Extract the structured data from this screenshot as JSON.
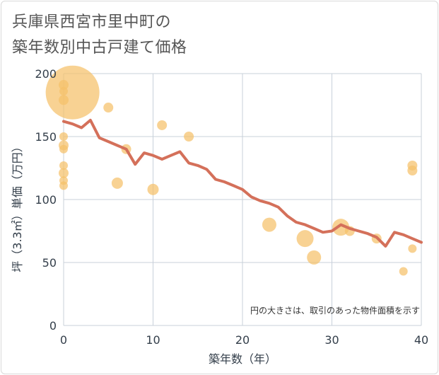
{
  "chart_data": {
    "type": "scatter",
    "title": [
      "兵庫県西宮市里中町の",
      "築年数別中古戸建て価格"
    ],
    "xlabel": "築年数（年）",
    "ylabel": "坪（3.3㎡）単価（万円）",
    "xlim": [
      0,
      40
    ],
    "ylim": [
      0,
      200
    ],
    "x_ticks": [
      0,
      10,
      20,
      30,
      40
    ],
    "y_ticks": [
      0,
      50,
      100,
      150,
      200
    ],
    "note": "円の大きさは、取引のあった物件面積を示す",
    "colors": {
      "bubble": "#f5c06a",
      "line": "#d4705a",
      "grid": "#c8d0da"
    },
    "bubbles": [
      {
        "x": 1,
        "y": 185,
        "size": 38
      },
      {
        "x": 0,
        "y": 191,
        "size": 7
      },
      {
        "x": 0,
        "y": 186,
        "size": 6
      },
      {
        "x": 0,
        "y": 179,
        "size": 7
      },
      {
        "x": 0,
        "y": 150,
        "size": 6
      },
      {
        "x": 0,
        "y": 143,
        "size": 7
      },
      {
        "x": 0,
        "y": 140,
        "size": 6
      },
      {
        "x": 0,
        "y": 127,
        "size": 6
      },
      {
        "x": 0,
        "y": 121,
        "size": 7
      },
      {
        "x": 0,
        "y": 115,
        "size": 6
      },
      {
        "x": 0,
        "y": 111,
        "size": 6
      },
      {
        "x": 5,
        "y": 173,
        "size": 7
      },
      {
        "x": 6,
        "y": 113,
        "size": 8
      },
      {
        "x": 7,
        "y": 140,
        "size": 7
      },
      {
        "x": 10,
        "y": 108,
        "size": 8
      },
      {
        "x": 11,
        "y": 159,
        "size": 7
      },
      {
        "x": 14,
        "y": 150,
        "size": 7
      },
      {
        "x": 23,
        "y": 80,
        "size": 10
      },
      {
        "x": 27,
        "y": 69,
        "size": 12
      },
      {
        "x": 28,
        "y": 54,
        "size": 10
      },
      {
        "x": 31,
        "y": 78,
        "size": 12
      },
      {
        "x": 32,
        "y": 75,
        "size": 7
      },
      {
        "x": 35,
        "y": 69,
        "size": 7
      },
      {
        "x": 38,
        "y": 43,
        "size": 6
      },
      {
        "x": 39,
        "y": 127,
        "size": 7
      },
      {
        "x": 39,
        "y": 123,
        "size": 7
      },
      {
        "x": 39,
        "y": 61,
        "size": 6
      }
    ],
    "trend": [
      {
        "x": 0,
        "y": 162
      },
      {
        "x": 1,
        "y": 160
      },
      {
        "x": 2,
        "y": 157
      },
      {
        "x": 3,
        "y": 163
      },
      {
        "x": 4,
        "y": 149
      },
      {
        "x": 5,
        "y": 146
      },
      {
        "x": 6,
        "y": 143
      },
      {
        "x": 7,
        "y": 140
      },
      {
        "x": 8,
        "y": 128
      },
      {
        "x": 9,
        "y": 137
      },
      {
        "x": 10,
        "y": 135
      },
      {
        "x": 11,
        "y": 132
      },
      {
        "x": 12,
        "y": 135
      },
      {
        "x": 13,
        "y": 138
      },
      {
        "x": 14,
        "y": 129
      },
      {
        "x": 15,
        "y": 127
      },
      {
        "x": 16,
        "y": 124
      },
      {
        "x": 17,
        "y": 116
      },
      {
        "x": 18,
        "y": 114
      },
      {
        "x": 19,
        "y": 111
      },
      {
        "x": 20,
        "y": 108
      },
      {
        "x": 21,
        "y": 102
      },
      {
        "x": 22,
        "y": 99
      },
      {
        "x": 23,
        "y": 97
      },
      {
        "x": 24,
        "y": 94
      },
      {
        "x": 25,
        "y": 87
      },
      {
        "x": 26,
        "y": 82
      },
      {
        "x": 27,
        "y": 80
      },
      {
        "x": 28,
        "y": 77
      },
      {
        "x": 29,
        "y": 74
      },
      {
        "x": 30,
        "y": 75
      },
      {
        "x": 31,
        "y": 80
      },
      {
        "x": 32,
        "y": 77
      },
      {
        "x": 33,
        "y": 75
      },
      {
        "x": 34,
        "y": 73
      },
      {
        "x": 35,
        "y": 70
      },
      {
        "x": 36,
        "y": 63
      },
      {
        "x": 37,
        "y": 74
      },
      {
        "x": 38,
        "y": 72
      },
      {
        "x": 39,
        "y": 69
      },
      {
        "x": 40,
        "y": 66
      }
    ]
  }
}
